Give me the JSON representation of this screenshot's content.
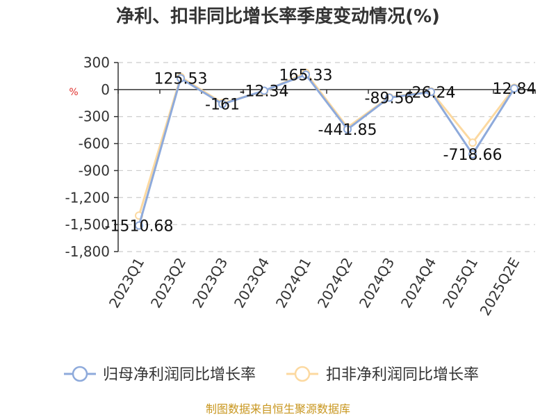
{
  "chart_data": {
    "type": "line",
    "title": "净利、扣非同比增长率季度变动情况(%)",
    "unit": "%",
    "categories": [
      "2023Q1",
      "2023Q2",
      "2023Q3",
      "2023Q4",
      "2024Q1",
      "2024Q2",
      "2024Q3",
      "2024Q4",
      "2025Q1",
      "2025Q2E"
    ],
    "ylim": [
      -1800,
      300
    ],
    "yticks": [
      300,
      0,
      -300,
      -600,
      -900,
      -1200,
      -1500,
      -1800
    ],
    "ytick_labels": [
      "300",
      "0",
      "-300",
      "-600",
      "-900",
      "-1,200",
      "-1,500",
      "-1,800"
    ],
    "grid": true,
    "legend_position": "bottom",
    "series": [
      {
        "name": "归母净利润同比增长率",
        "color": "#8eaadb",
        "values": [
          -1510.68,
          125.53,
          -161,
          -12.34,
          165.33,
          -441.85,
          -89.56,
          -26.24,
          -718.66,
          12.84
        ],
        "labels": [
          "-1510.68",
          "125.53",
          "-161",
          "-12.34",
          "165.33",
          "-441.85",
          "-89.56",
          "-26.24",
          "-718.66",
          "12.84"
        ]
      },
      {
        "name": "扣非净利润同比增长率",
        "color": "#fcd9a0",
        "values": [
          -1400,
          140,
          -150,
          -20,
          185,
          -420,
          -85,
          -20,
          -590,
          20
        ]
      }
    ],
    "source": "制图数据来自恒生聚源数据库"
  }
}
